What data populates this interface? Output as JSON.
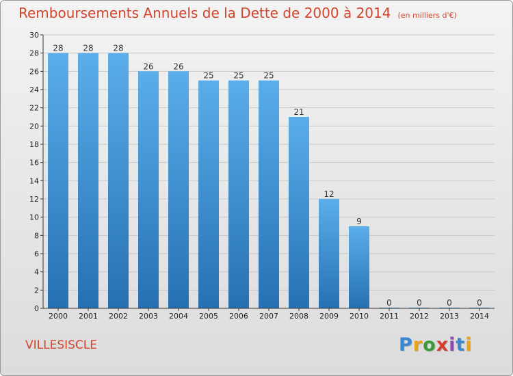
{
  "title": {
    "main": "Remboursements Annuels de la Dette de 2000 à 2014",
    "unit": "(en milliers d'€)"
  },
  "commune": "VILLESISCLE",
  "logo": {
    "text": "Proxiti",
    "letter_colors": [
      "#3a86d0",
      "#e8a21b",
      "#3b9b3b",
      "#d93c2a",
      "#8a4fb0",
      "#3a86d0",
      "#e8a21b"
    ]
  },
  "colors": {
    "title": "#d2452c",
    "bar_top": "#5aaeea",
    "bar_bottom": "#2670b3",
    "grid": "#c8c8c8"
  },
  "chart_data": {
    "type": "bar",
    "categories": [
      "2000",
      "2001",
      "2002",
      "2003",
      "2004",
      "2005",
      "2006",
      "2007",
      "2008",
      "2009",
      "2010",
      "2011",
      "2012",
      "2013",
      "2014"
    ],
    "values": [
      28,
      28,
      28,
      26,
      26,
      25,
      25,
      25,
      21,
      12,
      9,
      0,
      0,
      0,
      0
    ],
    "ylim": [
      0,
      30
    ],
    "yticks": [
      0,
      2,
      4,
      6,
      8,
      10,
      12,
      14,
      16,
      18,
      20,
      22,
      24,
      26,
      28,
      30
    ],
    "grid": true,
    "xlabel": "",
    "ylabel": ""
  }
}
